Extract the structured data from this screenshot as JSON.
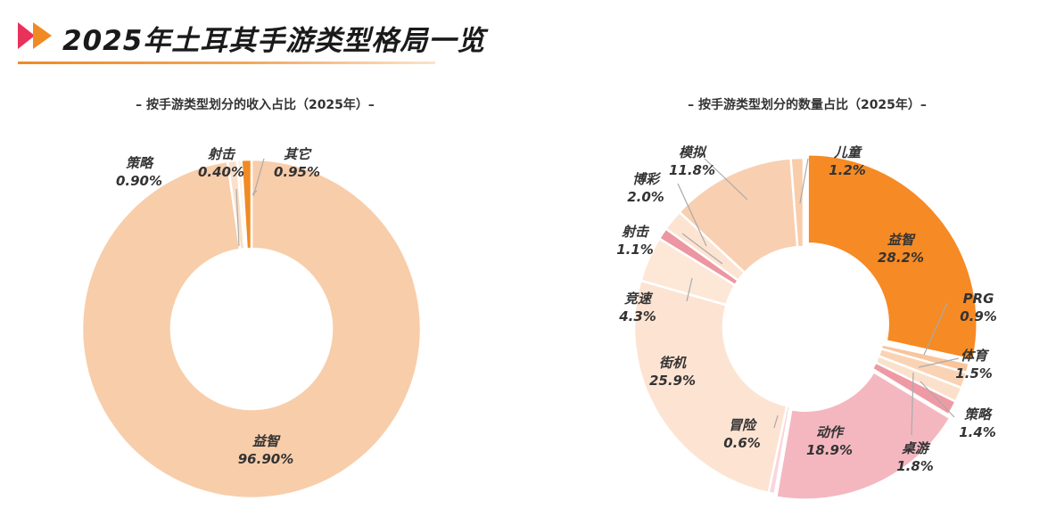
{
  "page": {
    "title": "2025年土耳其手游类型格局一览"
  },
  "colors": {
    "accent": "#f08a24",
    "accent_light": "#f3a65a"
  },
  "chart_data": [
    {
      "type": "pie",
      "donut": true,
      "title": "– 按手游类型划分的收入占比（2025年）–",
      "unit": "%",
      "slices": [
        {
          "name": "益智",
          "value": 96.9,
          "label": "96.90%",
          "color": "#f8cdaa"
        },
        {
          "name": "策略",
          "value": 0.9,
          "label": "0.90%",
          "color": "#fbe0c9"
        },
        {
          "name": "射击",
          "value": 0.4,
          "label": "0.40%",
          "color": "#fcefe2"
        },
        {
          "name": "其它",
          "value": 0.95,
          "label": "0.95%",
          "color": "#f08a24"
        }
      ]
    },
    {
      "type": "pie",
      "donut": true,
      "title": "– 按手游类型划分的数量占比（2025年）–",
      "unit": "%",
      "slices": [
        {
          "name": "益智",
          "value": 28.2,
          "label": "28.2%",
          "color": "#f68a24"
        },
        {
          "name": "PRG",
          "value": 0.9,
          "label": "0.9%",
          "color": "#f9c59c"
        },
        {
          "name": "体育",
          "value": 1.5,
          "label": "1.5%",
          "color": "#fad3b4"
        },
        {
          "name": "",
          "value": 1.4,
          "label": "",
          "color": "#fbe1cc"
        },
        {
          "name": "策略",
          "value": 1.4,
          "label": "1.4%",
          "color": "#ee9aa4"
        },
        {
          "name": "动作",
          "value": 18.9,
          "label": "18.9%",
          "color": "#f4b7c0"
        },
        {
          "name": "冒险",
          "value": 0.6,
          "label": "0.6%",
          "color": "#fad6dc"
        },
        {
          "name": "街机",
          "value": 25.9,
          "label": "25.9%",
          "color": "#fde3d2"
        },
        {
          "name": "竞速",
          "value": 4.3,
          "label": "4.3%",
          "color": "#fde8d8"
        },
        {
          "name": "射击",
          "value": 1.1,
          "label": "1.1%",
          "color": "#ec96a2"
        },
        {
          "name": "博彩",
          "value": 2.0,
          "label": "2.0%",
          "color": "#fde4d2"
        },
        {
          "name": "模拟",
          "value": 11.8,
          "label": "11.8%",
          "color": "#f8cfb0"
        },
        {
          "name": "儿童",
          "value": 1.2,
          "label": "1.2%",
          "color": "#f8cdaa"
        }
      ],
      "extra_labels": [
        {
          "name": "桌游",
          "label": "1.8%"
        }
      ]
    }
  ]
}
